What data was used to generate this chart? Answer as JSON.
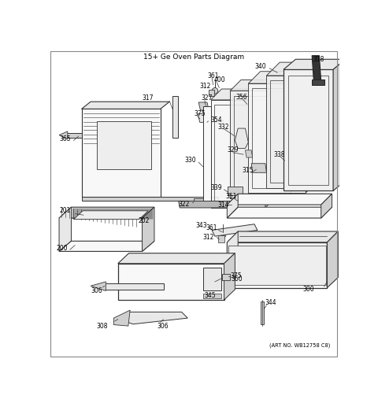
{
  "title": "15+ Ge Oven Parts Diagram",
  "background_color": "#ffffff",
  "border_color": "#aaaaaa",
  "text_color": "#000000",
  "art_no": "(ART NO. WB12758 C8)",
  "lc": "#333333",
  "lw": 0.6,
  "fc_light": "#f0f0f0",
  "fc_white": "#ffffff",
  "fc_gray": "#d8d8d8",
  "fc_dark": "#555555"
}
